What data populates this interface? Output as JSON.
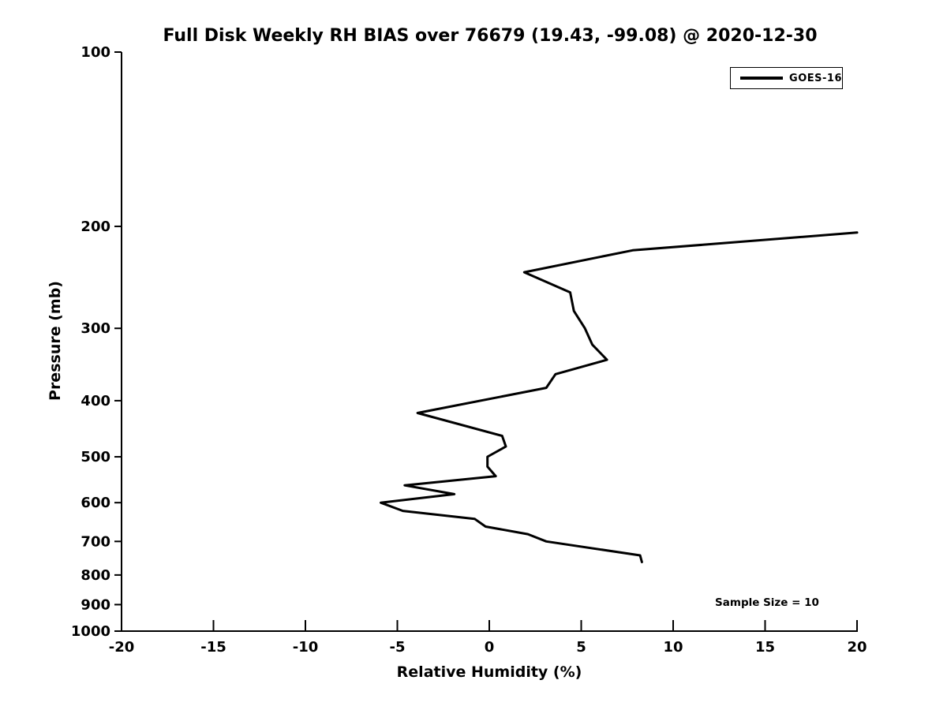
{
  "chart_data": {
    "type": "line",
    "title": "Full Disk Weekly RH BIAS over 76679 (19.43, -99.08) @ 2020-12-30",
    "xlabel": "Relative Humidity (%)",
    "ylabel": "Pressure (mb)",
    "xlim": [
      -20,
      20
    ],
    "ylim": [
      100,
      1000
    ],
    "xticks": [
      -20,
      -15,
      -10,
      -5,
      0,
      5,
      10,
      15,
      20
    ],
    "yticks": [
      100,
      200,
      300,
      400,
      500,
      600,
      700,
      800,
      900,
      1000
    ],
    "yscale": "log",
    "y_inverted": true,
    "grid": false,
    "line_color": "#000000",
    "line_width": 3,
    "legend": {
      "position": "upper-right",
      "entries": [
        "GOES-16"
      ]
    },
    "annotations": [
      {
        "text": "Sample Size = 10"
      }
    ],
    "series": [
      {
        "name": "GOES-16",
        "color": "#000000",
        "note": "Profile of RH bias vs pressure; topmost point clipped at x-axis max (RH = 20) near 205 mb",
        "points": [
          {
            "rh": 20.0,
            "p": 205
          },
          {
            "rh": 7.8,
            "p": 220
          },
          {
            "rh": 1.9,
            "p": 240
          },
          {
            "rh": 4.4,
            "p": 260
          },
          {
            "rh": 4.6,
            "p": 280
          },
          {
            "rh": 5.2,
            "p": 300
          },
          {
            "rh": 5.6,
            "p": 320
          },
          {
            "rh": 6.4,
            "p": 340
          },
          {
            "rh": 3.6,
            "p": 360
          },
          {
            "rh": 3.1,
            "p": 380
          },
          {
            "rh": -3.9,
            "p": 420
          },
          {
            "rh": 0.7,
            "p": 460
          },
          {
            "rh": 0.9,
            "p": 480
          },
          {
            "rh": -0.1,
            "p": 500
          },
          {
            "rh": -0.1,
            "p": 520
          },
          {
            "rh": 0.35,
            "p": 540
          },
          {
            "rh": -4.6,
            "p": 560
          },
          {
            "rh": -1.9,
            "p": 580
          },
          {
            "rh": -5.9,
            "p": 600
          },
          {
            "rh": -4.7,
            "p": 620
          },
          {
            "rh": -0.8,
            "p": 640
          },
          {
            "rh": -0.2,
            "p": 660
          },
          {
            "rh": 2.1,
            "p": 680
          },
          {
            "rh": 3.1,
            "p": 700
          },
          {
            "rh": 8.2,
            "p": 740
          },
          {
            "rh": 8.3,
            "p": 760
          }
        ]
      }
    ]
  }
}
